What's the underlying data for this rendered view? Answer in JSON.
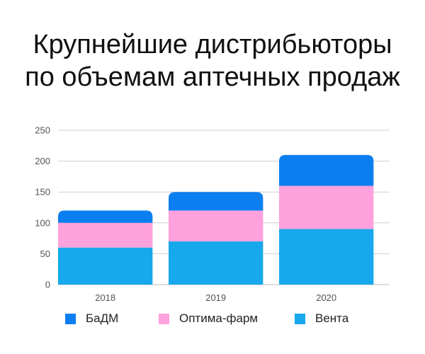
{
  "title_lines": [
    "Крупнейшие дистрибьюторы",
    "по объемам аптечных продаж"
  ],
  "chart_data": {
    "type": "bar",
    "stacked": true,
    "categories": [
      "2018",
      "2019",
      "2020"
    ],
    "series": [
      {
        "name": "Вента",
        "color": "#17a9ec",
        "values": [
          60,
          70,
          90
        ]
      },
      {
        "name": "Оптима-фарм",
        "color": "#ffa1dc",
        "values": [
          40,
          50,
          70
        ]
      },
      {
        "name": "БаДМ",
        "color": "#0c7ff0",
        "values": [
          20,
          30,
          50
        ]
      }
    ],
    "yticks": [
      0,
      50,
      100,
      150,
      200,
      250
    ],
    "ylim": [
      0,
      250
    ],
    "grid": true,
    "legend_position": "bottom"
  },
  "legend": [
    {
      "label": "БаДМ",
      "color": "#0c7ff0"
    },
    {
      "label": "Оптима-фарм",
      "color": "#ffa1dc"
    },
    {
      "label": "Вента",
      "color": "#17a9ec"
    }
  ]
}
